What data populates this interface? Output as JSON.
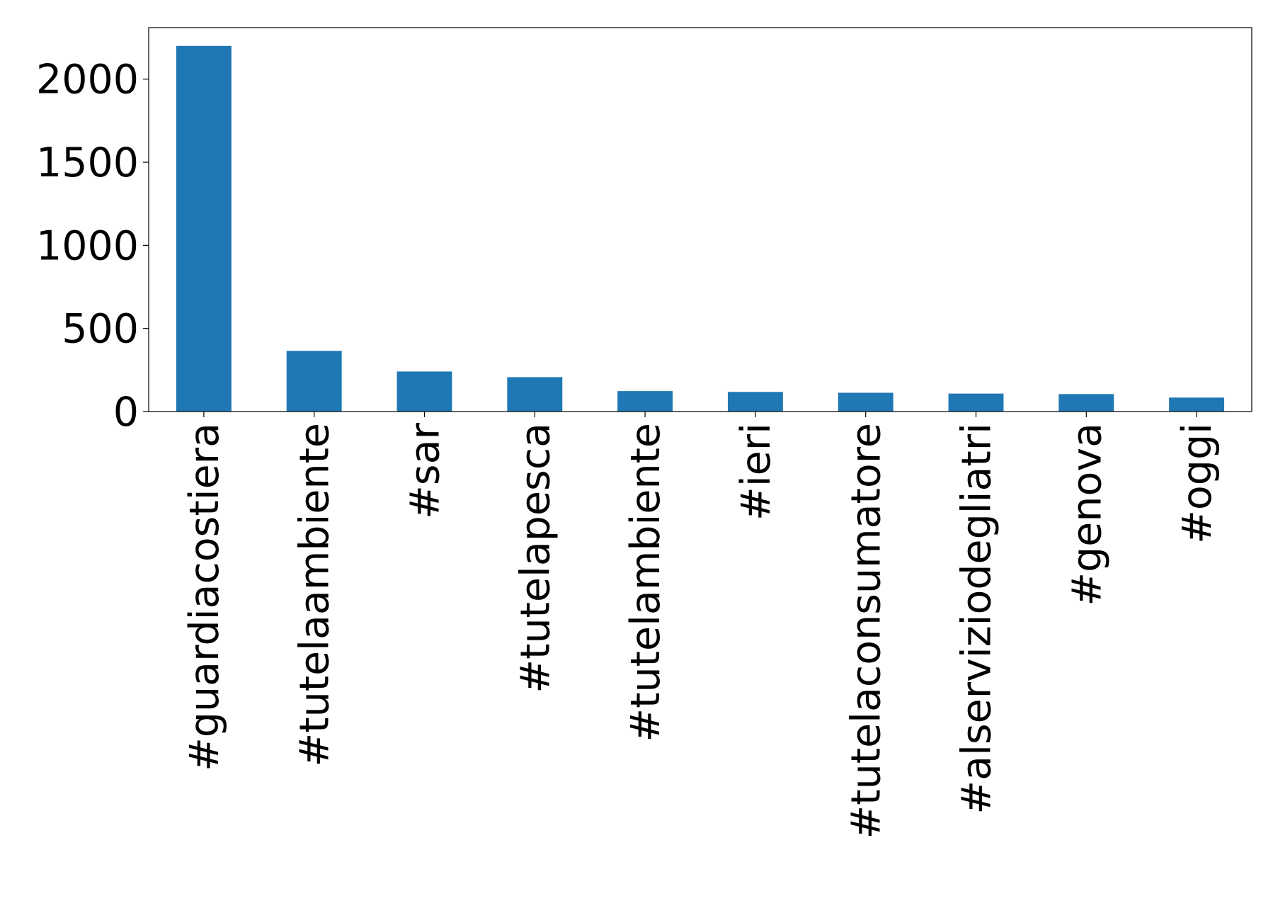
{
  "chart_data": {
    "type": "bar",
    "categories": [
      "#guardiacostiera",
      "#tutelaambiente",
      "#sar",
      "#tutelapesca",
      "#tutelambiente",
      "#ieri",
      "#tutelaconsumatore",
      "#alserviziodegliatri",
      "#genova",
      "#oggi"
    ],
    "values": [
      2200,
      365,
      241,
      207,
      123,
      118,
      113,
      108,
      105,
      84
    ],
    "color": "#1f77b4",
    "ylim": [
      0,
      2310
    ],
    "yticks": [
      0,
      500,
      1000,
      1500,
      2000
    ],
    "grid": false
  }
}
